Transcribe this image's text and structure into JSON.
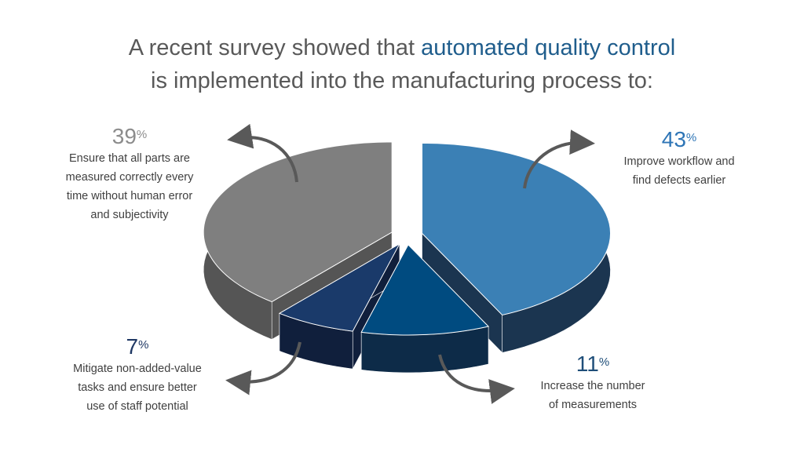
{
  "title": {
    "prefix": "A recent survey showed that ",
    "highlight": "automated quality control",
    "line2": "is implemented into the manufacturing process to:"
  },
  "chart_data": {
    "type": "pie",
    "style": "3d-exploded",
    "categories": [
      "Improve workflow and find defects earlier",
      "Increase the number of measurements",
      "Mitigate non-added-value tasks and ensure better use of staff potential",
      "Ensure that all parts are measured correctly every time without human error and subjectivity"
    ],
    "values": [
      43,
      11,
      7,
      39
    ],
    "unit": "%",
    "colors": [
      "#3b80b5",
      "#004b80",
      "#1a3a6a",
      "#7f7f7f"
    ],
    "side_colors": [
      "#1b3550",
      "#0d2b48",
      "#101f3c",
      "#555555"
    ],
    "pct_colors": [
      "#2e75b6",
      "#1f4e79",
      "#1f3864",
      "#8c8c8c"
    ]
  },
  "labels": [
    {
      "pct": "43",
      "text1": "Improve workflow and",
      "text2": "find defects earlier"
    },
    {
      "pct": "11",
      "text1": "Increase the number",
      "text2": "of measurements"
    },
    {
      "pct": "7",
      "text1": "Mitigate non-added-value",
      "text2": "tasks and ensure better",
      "text3": "use of staff potential"
    },
    {
      "pct": "39",
      "text1": "Ensure that all parts are",
      "text2": "measured correctly every",
      "text3": "time without human error",
      "text4": "and subjectivity"
    }
  ],
  "pct_sign": "%"
}
